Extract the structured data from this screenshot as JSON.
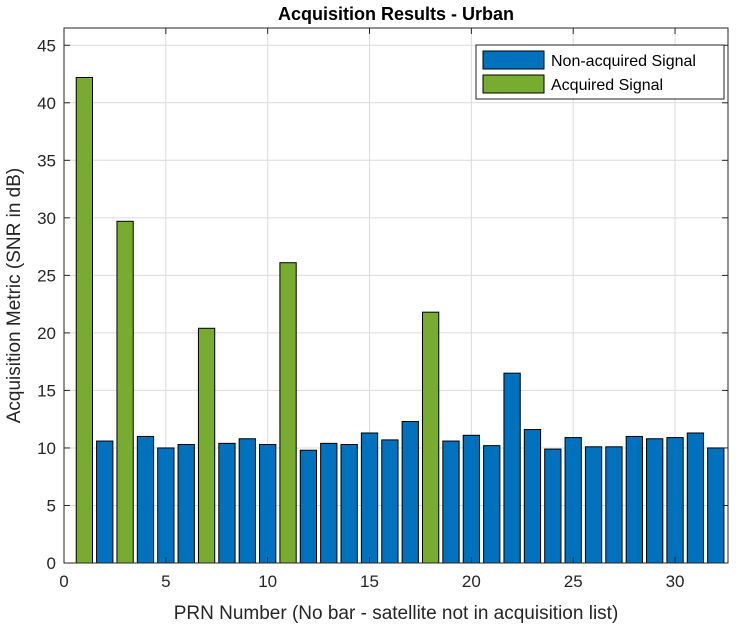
{
  "chart_data": {
    "type": "bar",
    "title": "Acquisition Results - Urban",
    "xlabel": "PRN Number (No bar - satellite not in acquisition list)",
    "ylabel": "Acquisition Metric (SNR in dB)",
    "xlim": [
      0,
      32.6
    ],
    "ylim": [
      0,
      46.5
    ],
    "xticks": [
      0,
      5,
      10,
      15,
      20,
      25,
      30
    ],
    "yticks": [
      0,
      5,
      10,
      15,
      20,
      25,
      30,
      35,
      40,
      45
    ],
    "grid": true,
    "legend_position": "top-right",
    "series": [
      {
        "name": "Non-acquired Signal",
        "color": "#0072BD",
        "points": [
          {
            "x": 2,
            "y": 10.6
          },
          {
            "x": 4,
            "y": 11.0
          },
          {
            "x": 5,
            "y": 10.0
          },
          {
            "x": 6,
            "y": 10.3
          },
          {
            "x": 8,
            "y": 10.4
          },
          {
            "x": 9,
            "y": 10.8
          },
          {
            "x": 10,
            "y": 10.3
          },
          {
            "x": 12,
            "y": 9.8
          },
          {
            "x": 13,
            "y": 10.4
          },
          {
            "x": 14,
            "y": 10.3
          },
          {
            "x": 15,
            "y": 11.3
          },
          {
            "x": 16,
            "y": 10.7
          },
          {
            "x": 17,
            "y": 12.3
          },
          {
            "x": 19,
            "y": 10.6
          },
          {
            "x": 20,
            "y": 11.1
          },
          {
            "x": 21,
            "y": 10.2
          },
          {
            "x": 22,
            "y": 16.5
          },
          {
            "x": 23,
            "y": 11.6
          },
          {
            "x": 24,
            "y": 9.9
          },
          {
            "x": 25,
            "y": 10.9
          },
          {
            "x": 26,
            "y": 10.1
          },
          {
            "x": 27,
            "y": 10.1
          },
          {
            "x": 28,
            "y": 11.0
          },
          {
            "x": 29,
            "y": 10.8
          },
          {
            "x": 30,
            "y": 10.9
          },
          {
            "x": 31,
            "y": 11.3
          },
          {
            "x": 32,
            "y": 10.0
          }
        ]
      },
      {
        "name": "Acquired Signal",
        "color": "#77AC30",
        "points": [
          {
            "x": 1,
            "y": 42.2
          },
          {
            "x": 3,
            "y": 29.7
          },
          {
            "x": 7,
            "y": 20.4
          },
          {
            "x": 11,
            "y": 26.1
          },
          {
            "x": 18,
            "y": 21.8
          }
        ]
      }
    ]
  }
}
